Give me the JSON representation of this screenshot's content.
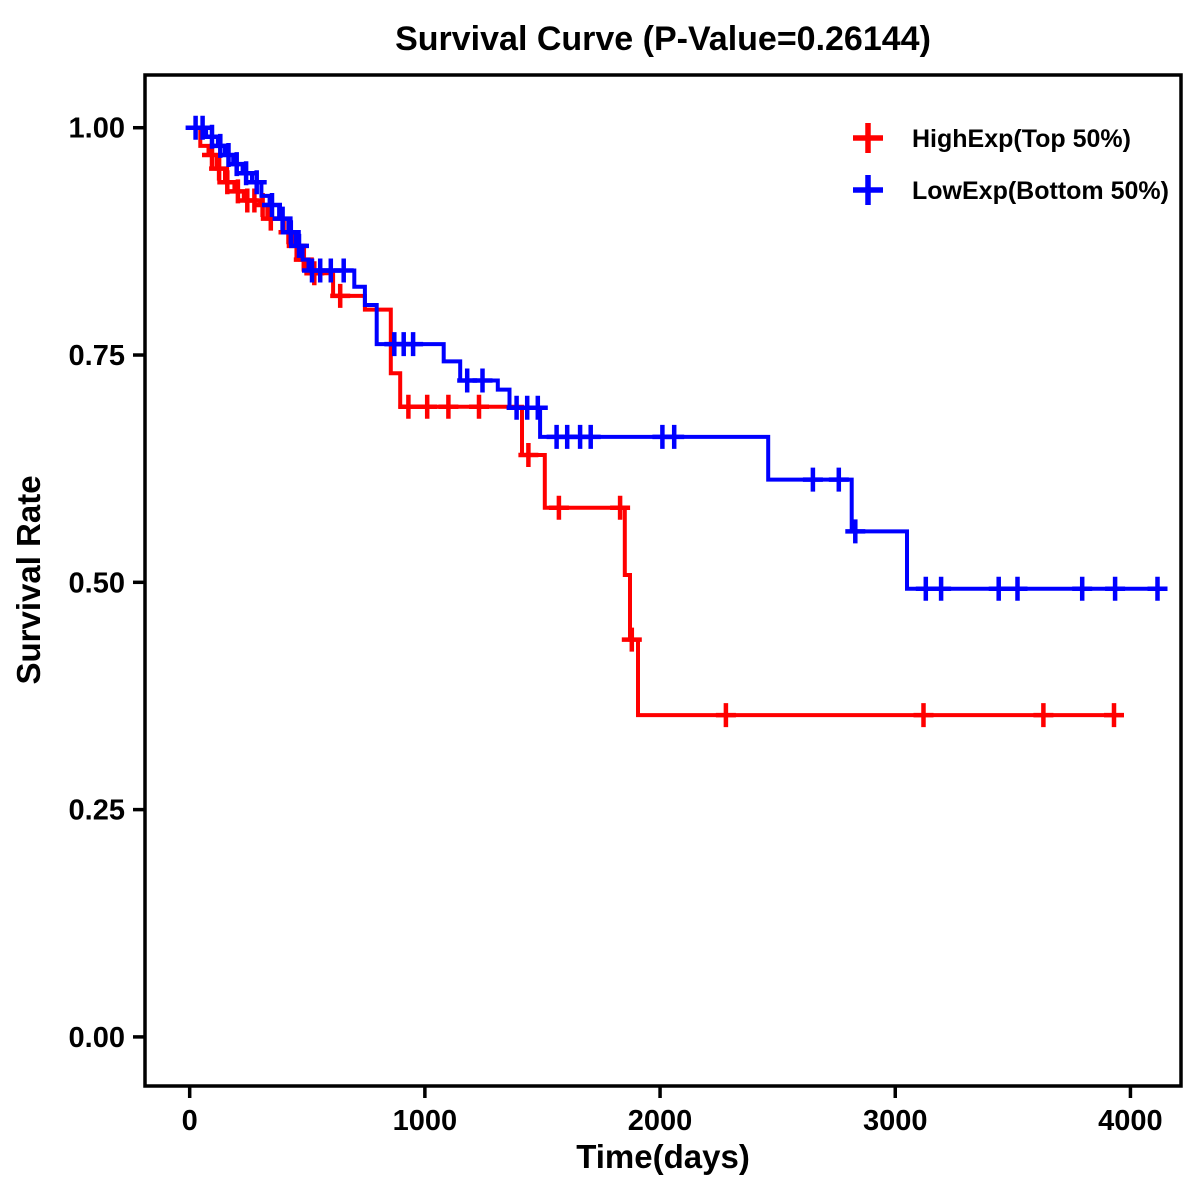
{
  "chart_data": {
    "type": "line",
    "subtype": "kaplan-meier-step",
    "title": "Survival Curve (P-Value=0.26144)",
    "p_value": 0.26144,
    "xlabel": "Time(days)",
    "ylabel": "Survival Rate",
    "xticks": [
      0,
      1000,
      2000,
      3000,
      4000
    ],
    "yticks": [
      0.0,
      0.25,
      0.5,
      0.75,
      1.0
    ],
    "xlim": [
      -190,
      4215
    ],
    "ylim": [
      -0.054,
      1.058
    ],
    "grid": false,
    "legend_position": "top-right",
    "axis_color": "#000000",
    "series": [
      {
        "name": "HighExp(Top 50%)",
        "color": "#ff0000",
        "end_x": 3970,
        "steps": [
          [
            0,
            1.0
          ],
          [
            45,
            0.98
          ],
          [
            80,
            0.97
          ],
          [
            115,
            0.955
          ],
          [
            150,
            0.94
          ],
          [
            190,
            0.93
          ],
          [
            230,
            0.92
          ],
          [
            300,
            0.915
          ],
          [
            330,
            0.9
          ],
          [
            400,
            0.885
          ],
          [
            440,
            0.87
          ],
          [
            470,
            0.855
          ],
          [
            500,
            0.84
          ],
          [
            610,
            0.815
          ],
          [
            745,
            0.8
          ],
          [
            855,
            0.73
          ],
          [
            895,
            0.693
          ],
          [
            1413,
            0.64
          ],
          [
            1510,
            0.582
          ],
          [
            1850,
            0.508
          ],
          [
            1872,
            0.437
          ],
          [
            1906,
            0.354
          ]
        ],
        "censors": [
          [
            95,
            0.97
          ],
          [
            125,
            0.955
          ],
          [
            160,
            0.94
          ],
          [
            205,
            0.93
          ],
          [
            245,
            0.92
          ],
          [
            275,
            0.92
          ],
          [
            310,
            0.915
          ],
          [
            345,
            0.9
          ],
          [
            420,
            0.885
          ],
          [
            455,
            0.87
          ],
          [
            485,
            0.855
          ],
          [
            530,
            0.84
          ],
          [
            640,
            0.815
          ],
          [
            930,
            0.693
          ],
          [
            1010,
            0.693
          ],
          [
            1100,
            0.693
          ],
          [
            1230,
            0.693
          ],
          [
            1440,
            0.64
          ],
          [
            1570,
            0.582
          ],
          [
            1830,
            0.582
          ],
          [
            1880,
            0.437
          ],
          [
            2280,
            0.354
          ],
          [
            3120,
            0.354
          ],
          [
            3630,
            0.354
          ],
          [
            3930,
            0.354
          ]
        ]
      },
      {
        "name": "LowExp(Bottom 50%)",
        "color": "#0000ff",
        "end_x": 4150,
        "steps": [
          [
            0,
            1.0
          ],
          [
            70,
            0.99
          ],
          [
            120,
            0.98
          ],
          [
            150,
            0.97
          ],
          [
            185,
            0.96
          ],
          [
            225,
            0.95
          ],
          [
            265,
            0.94
          ],
          [
            305,
            0.925
          ],
          [
            340,
            0.915
          ],
          [
            380,
            0.9
          ],
          [
            420,
            0.885
          ],
          [
            450,
            0.87
          ],
          [
            480,
            0.855
          ],
          [
            505,
            0.843
          ],
          [
            700,
            0.825
          ],
          [
            745,
            0.805
          ],
          [
            795,
            0.762
          ],
          [
            1080,
            0.743
          ],
          [
            1150,
            0.722
          ],
          [
            1310,
            0.712
          ],
          [
            1360,
            0.692
          ],
          [
            1490,
            0.66
          ],
          [
            2460,
            0.613
          ],
          [
            2815,
            0.556
          ],
          [
            3050,
            0.493
          ]
        ],
        "censors": [
          [
            25,
            1.0
          ],
          [
            55,
            1.0
          ],
          [
            95,
            0.99
          ],
          [
            130,
            0.98
          ],
          [
            165,
            0.97
          ],
          [
            200,
            0.96
          ],
          [
            240,
            0.95
          ],
          [
            285,
            0.94
          ],
          [
            350,
            0.915
          ],
          [
            395,
            0.9
          ],
          [
            430,
            0.885
          ],
          [
            465,
            0.87
          ],
          [
            520,
            0.843
          ],
          [
            555,
            0.843
          ],
          [
            600,
            0.843
          ],
          [
            655,
            0.843
          ],
          [
            870,
            0.762
          ],
          [
            910,
            0.762
          ],
          [
            950,
            0.762
          ],
          [
            1180,
            0.722
          ],
          [
            1245,
            0.722
          ],
          [
            1390,
            0.692
          ],
          [
            1435,
            0.692
          ],
          [
            1480,
            0.692
          ],
          [
            1560,
            0.66
          ],
          [
            1605,
            0.66
          ],
          [
            1660,
            0.66
          ],
          [
            1705,
            0.66
          ],
          [
            2010,
            0.66
          ],
          [
            2060,
            0.66
          ],
          [
            2650,
            0.613
          ],
          [
            2760,
            0.613
          ],
          [
            2830,
            0.556
          ],
          [
            3130,
            0.493
          ],
          [
            3195,
            0.493
          ],
          [
            3440,
            0.493
          ],
          [
            3520,
            0.493
          ],
          [
            3795,
            0.493
          ],
          [
            3935,
            0.493
          ],
          [
            4115,
            0.493
          ]
        ]
      }
    ]
  }
}
